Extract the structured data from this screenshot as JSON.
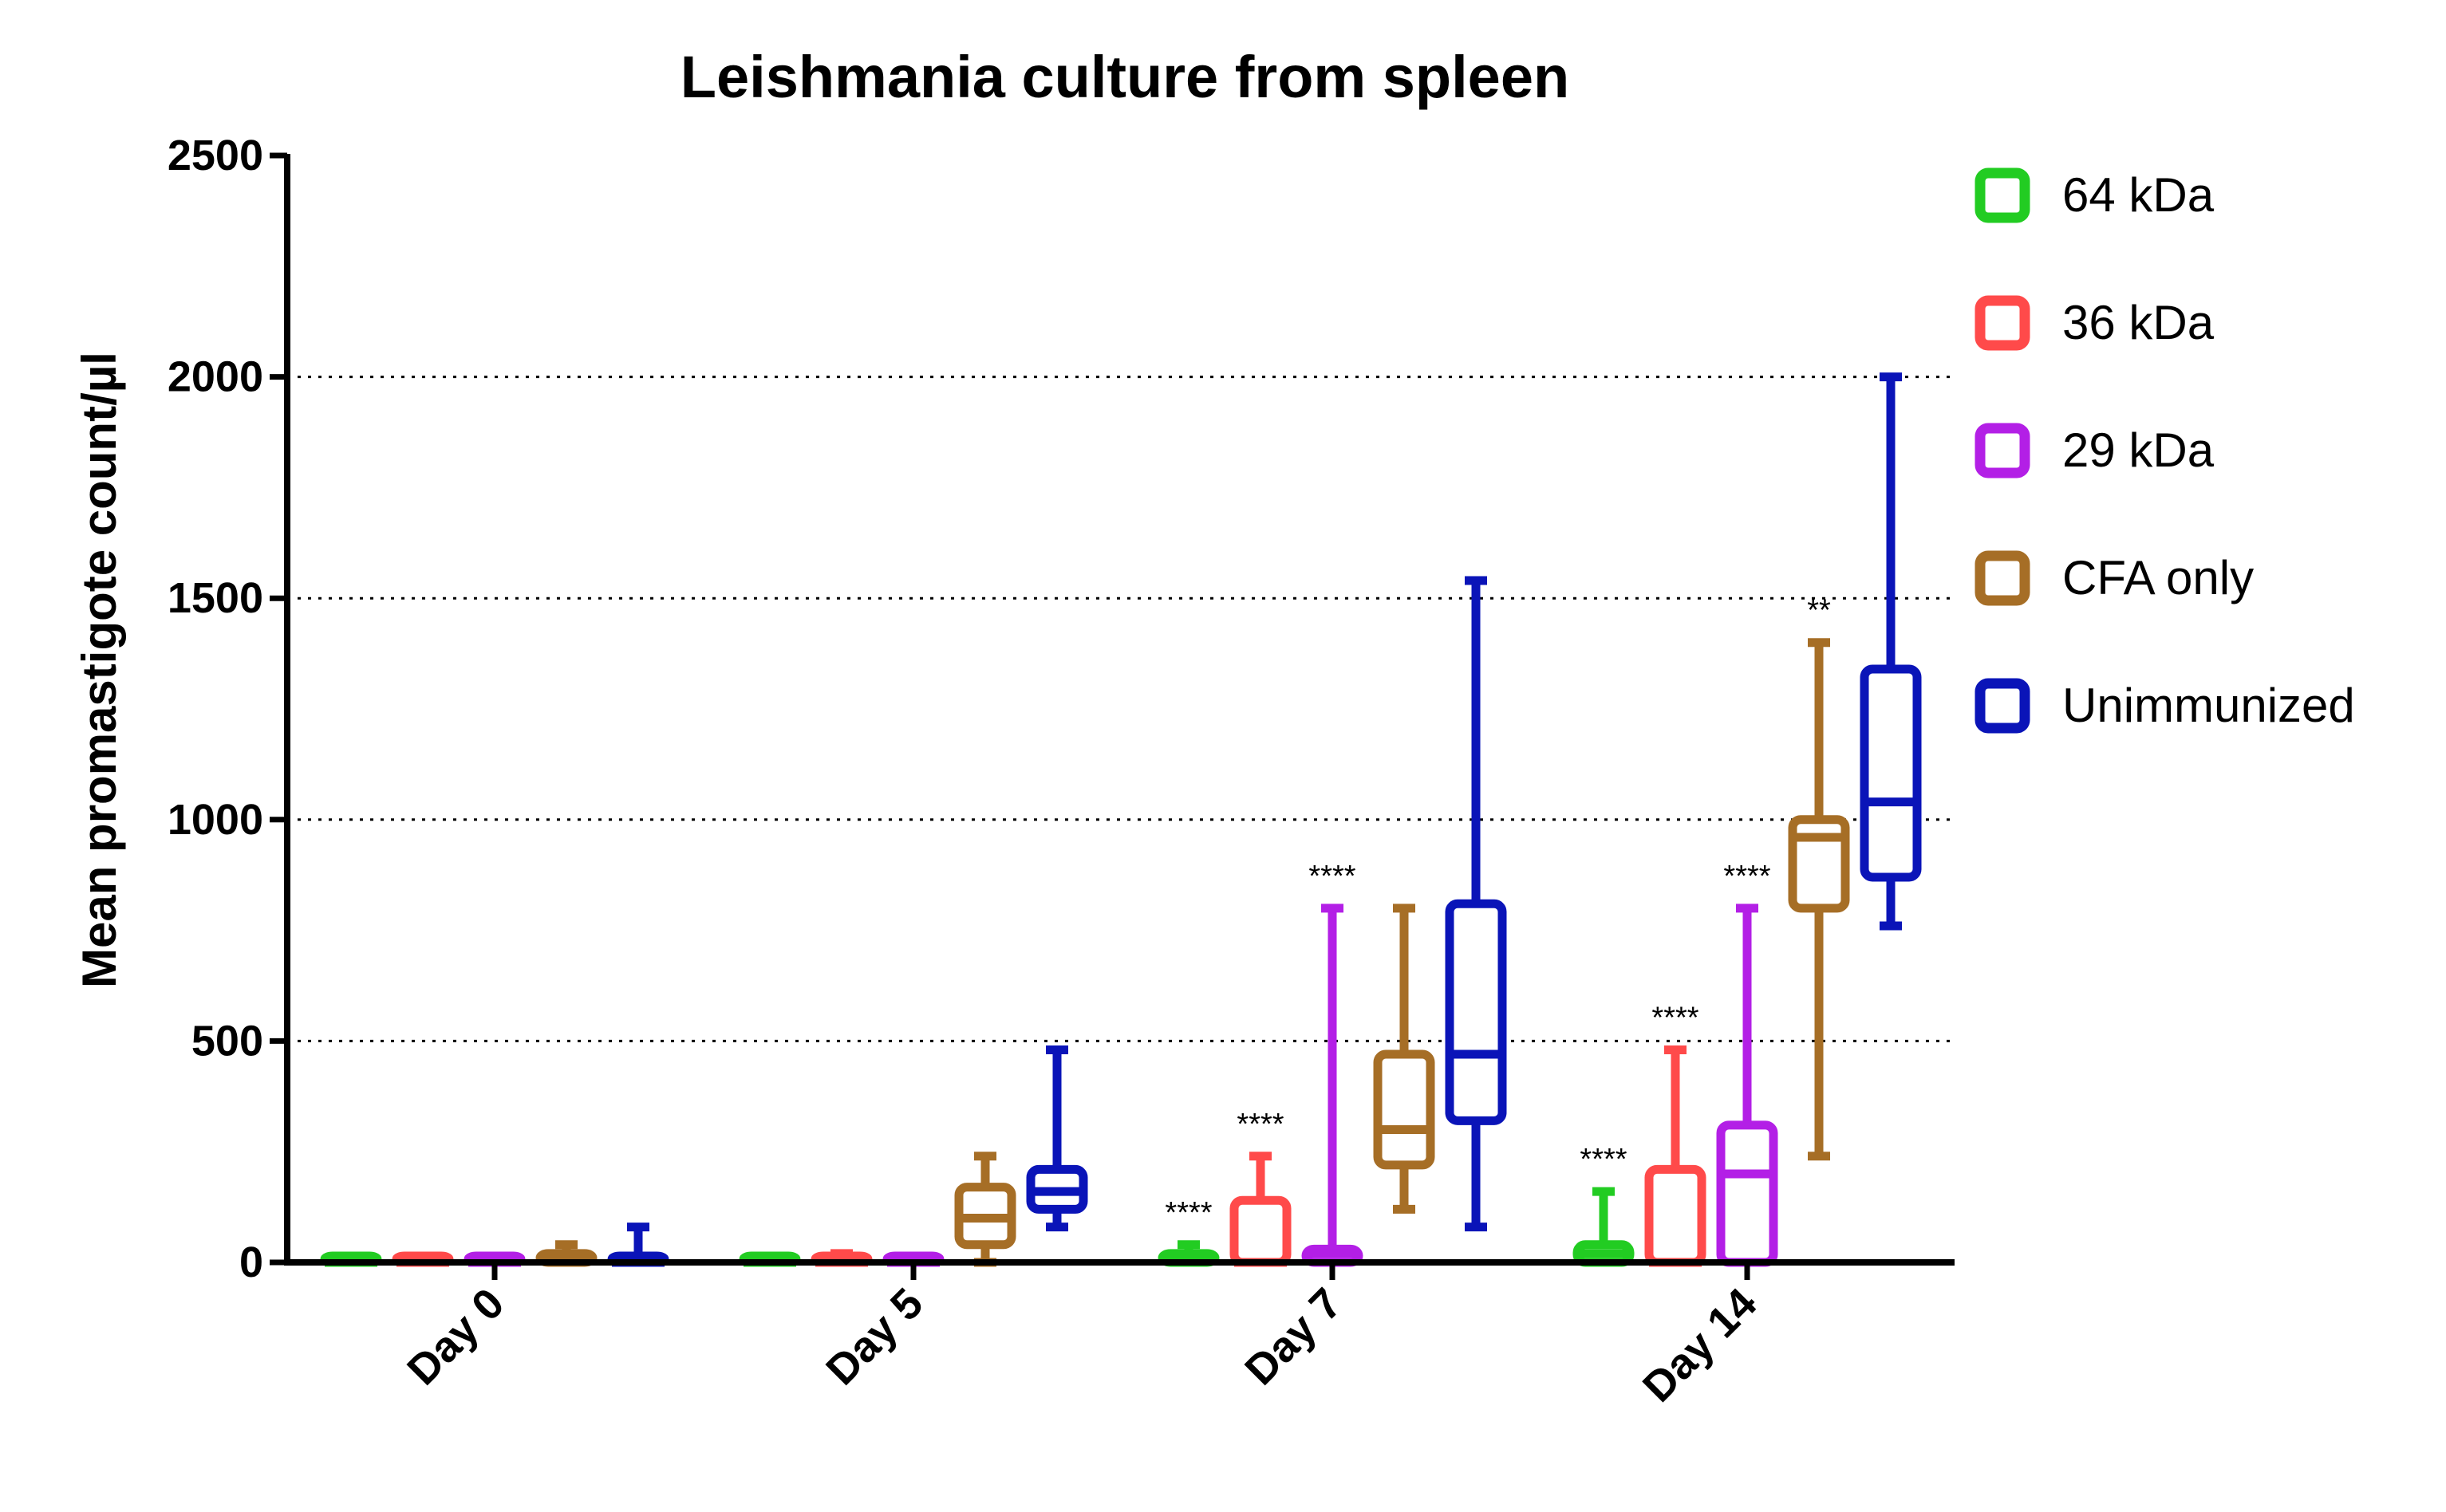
{
  "chart_data": {
    "type": "box",
    "title": "Leishmania culture from spleen",
    "xlabel": "",
    "ylabel": "Mean promastigote count/µl",
    "ylim": [
      0,
      2500
    ],
    "yticks": [
      "0",
      "500",
      "1000",
      "1500",
      "2000",
      "2500"
    ],
    "grid": "horizontal dotted lines at 500, 1000, 1500, 2000",
    "legend_position": "right",
    "categories": [
      "Day 0",
      "Day 5",
      "Day 7",
      "Day 14"
    ],
    "series": [
      {
        "name": "64 kDa",
        "color": "#22cc22",
        "boxes": [
          {
            "min": 0,
            "q1": 0,
            "median": 0,
            "q3": 0,
            "max": 0
          },
          {
            "min": 0,
            "q1": 0,
            "median": 0,
            "q3": 0,
            "max": 0
          },
          {
            "min": 0,
            "q1": 0,
            "median": 10,
            "q3": 20,
            "max": 40
          },
          {
            "min": 0,
            "q1": 0,
            "median": 20,
            "q3": 40,
            "max": 160
          }
        ],
        "annotations": [
          "",
          "",
          "****",
          "****"
        ]
      },
      {
        "name": "36 kDa",
        "color": "#ff4a4a",
        "boxes": [
          {
            "min": 0,
            "q1": 0,
            "median": 0,
            "q3": 0,
            "max": 0
          },
          {
            "min": 0,
            "q1": 0,
            "median": 0,
            "q3": 5,
            "max": 20
          },
          {
            "min": 0,
            "q1": 0,
            "median": 0,
            "q3": 140,
            "max": 240
          },
          {
            "min": 0,
            "q1": 0,
            "median": 0,
            "q3": 210,
            "max": 480
          }
        ],
        "annotations": [
          "",
          "",
          "****",
          "****"
        ]
      },
      {
        "name": "29 kDa",
        "color": "#b31fe6",
        "boxes": [
          {
            "min": 0,
            "q1": 0,
            "median": 0,
            "q3": 0,
            "max": 0
          },
          {
            "min": 0,
            "q1": 0,
            "median": 0,
            "q3": 0,
            "max": 0
          },
          {
            "min": 0,
            "q1": 0,
            "median": 20,
            "q3": 30,
            "max": 800
          },
          {
            "min": 0,
            "q1": 0,
            "median": 200,
            "q3": 310,
            "max": 800
          }
        ],
        "annotations": [
          "",
          "",
          "****",
          "****"
        ]
      },
      {
        "name": "CFA only",
        "color": "#a66e26",
        "boxes": [
          {
            "min": 0,
            "q1": 0,
            "median": 10,
            "q3": 20,
            "max": 40
          },
          {
            "min": 0,
            "q1": 40,
            "median": 100,
            "q3": 170,
            "max": 240
          },
          {
            "min": 120,
            "q1": 220,
            "median": 300,
            "q3": 470,
            "max": 800
          },
          {
            "min": 240,
            "q1": 800,
            "median": 960,
            "q3": 1000,
            "max": 1400
          }
        ],
        "annotations": [
          "",
          "",
          "",
          "**"
        ]
      },
      {
        "name": "Unimmunized",
        "color": "#0a14b8",
        "boxes": [
          {
            "min": 0,
            "q1": 0,
            "median": 0,
            "q3": 10,
            "max": 80
          },
          {
            "min": 80,
            "q1": 120,
            "median": 160,
            "q3": 210,
            "max": 480
          },
          {
            "min": 80,
            "q1": 320,
            "median": 470,
            "q3": 810,
            "max": 1540
          },
          {
            "min": 760,
            "q1": 870,
            "median": 1040,
            "q3": 1340,
            "max": 2000
          }
        ],
        "annotations": [
          "",
          "",
          "",
          ""
        ]
      }
    ]
  }
}
